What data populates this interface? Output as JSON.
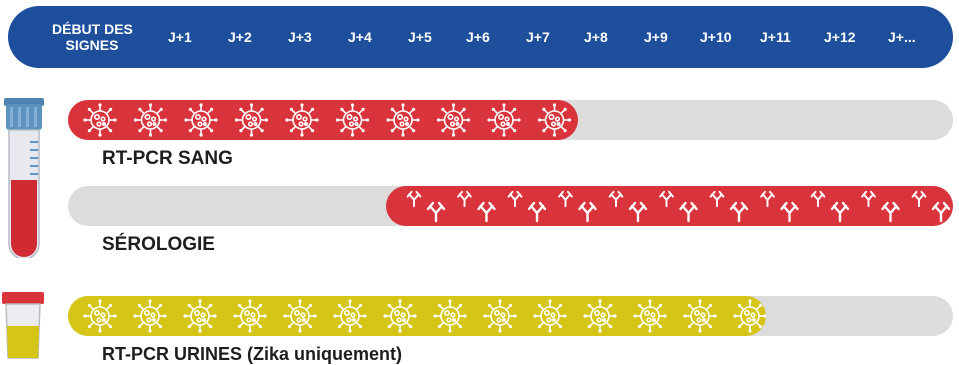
{
  "header": {
    "first_label_line1": "DÉBUT DES",
    "first_label_line2": "SIGNES",
    "days": [
      "J+1",
      "J+2",
      "J+3",
      "J+4",
      "J+5",
      "J+6",
      "J+7",
      "J+8",
      "J+9",
      "J+10",
      "J+11",
      "J+12",
      "J+..."
    ]
  },
  "rows": [
    {
      "label": "RT-PCR SANG",
      "color": "#d9333b",
      "symbol": "virus-icon",
      "start_day": 0,
      "end_day": 7.5
    },
    {
      "label": "SÉROLOGIE",
      "color": "#d9333b",
      "symbol": "antibody-icon",
      "start_day": 5,
      "end_day": 13
    },
    {
      "label": "RT-PCR URINES (Zika uniquement)",
      "color": "#d4c516",
      "symbol": "virus-icon",
      "start_day": 0,
      "end_day": 10.5
    }
  ],
  "colors": {
    "header_bg": "#1d4f9c",
    "track_bg": "#dcdcdc",
    "blood_red": "#d9333b",
    "urine_yellow": "#d4c516",
    "tube_cap": "#5f93bf",
    "cup_lid": "#d9333b"
  },
  "icons": [
    "blood-tube-icon",
    "urine-cup-icon"
  ]
}
